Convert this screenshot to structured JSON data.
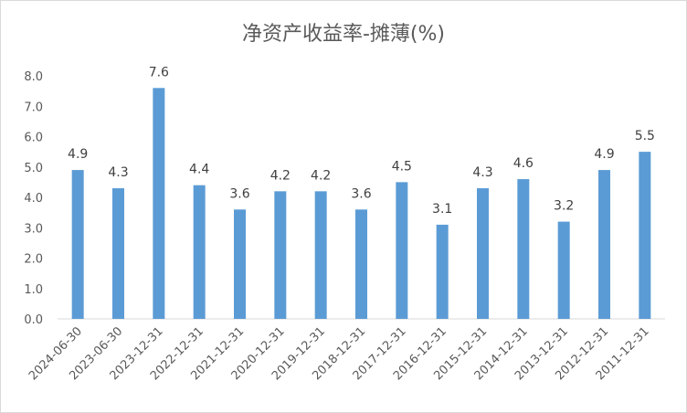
{
  "chart_data": {
    "type": "bar",
    "title": "净资产收益率-摊薄(%)",
    "categories": [
      "2024-06-30",
      "2023-06-30",
      "2023-12-31",
      "2022-12-31",
      "2021-12-31",
      "2020-12-31",
      "2019-12-31",
      "2018-12-31",
      "2017-12-31",
      "2016-12-31",
      "2015-12-31",
      "2014-12-31",
      "2013-12-31",
      "2012-12-31",
      "2011-12-31"
    ],
    "values": [
      4.9,
      4.3,
      7.6,
      4.4,
      3.6,
      4.2,
      4.2,
      3.6,
      4.5,
      3.1,
      4.3,
      4.6,
      3.2,
      4.9,
      5.5
    ],
    "data_labels": [
      "4.9",
      "4.3",
      "7.6",
      "4.4",
      "3.6",
      "4.2",
      "4.2",
      "3.6",
      "4.5",
      "3.1",
      "4.3",
      "4.6",
      "3.2",
      "4.9",
      "5.5"
    ],
    "yticks": [
      "0.0",
      "1.0",
      "2.0",
      "3.0",
      "4.0",
      "5.0",
      "6.0",
      "7.0",
      "8.0"
    ],
    "ylim": [
      0,
      8
    ],
    "grid": false,
    "legend": "none",
    "bar_color": "#5b9bd5",
    "axis_color": "#d9d9d9"
  }
}
